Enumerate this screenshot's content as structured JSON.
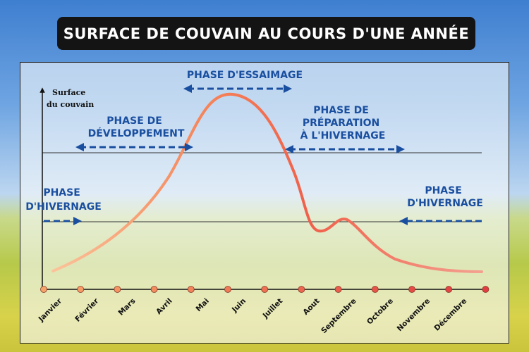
{
  "title": "SURFACE DE COUVAIN AU COURS D'UNE ANNÉE",
  "colors": {
    "curve": "#f07850",
    "arrow": "#1a4fa0",
    "title_bg": "#141414"
  },
  "chart_data": {
    "type": "line",
    "ylabel_lines": [
      "Surface",
      "du couvain"
    ],
    "categories": [
      "Janvier",
      "Février",
      "Mars",
      "Avril",
      "Mai",
      "Juin",
      "Juillet",
      "Aout",
      "Septembre",
      "Octobre",
      "Novembre",
      "Décembre"
    ],
    "phases": [
      {
        "lines": [
          "PHASE",
          "D'HIVERNAGE"
        ]
      },
      {
        "lines": [
          "PHASE DE",
          "DÉVELOPPEMENT"
        ]
      },
      {
        "lines": [
          "PHASE D'ESSAIMAGE"
        ]
      },
      {
        "lines": [
          "PHASE DE",
          "PRÉPARATION",
          "À L'HIVERNAGE"
        ]
      },
      {
        "lines": [
          "PHASE",
          "D'HIVERNAGE"
        ]
      }
    ]
  }
}
